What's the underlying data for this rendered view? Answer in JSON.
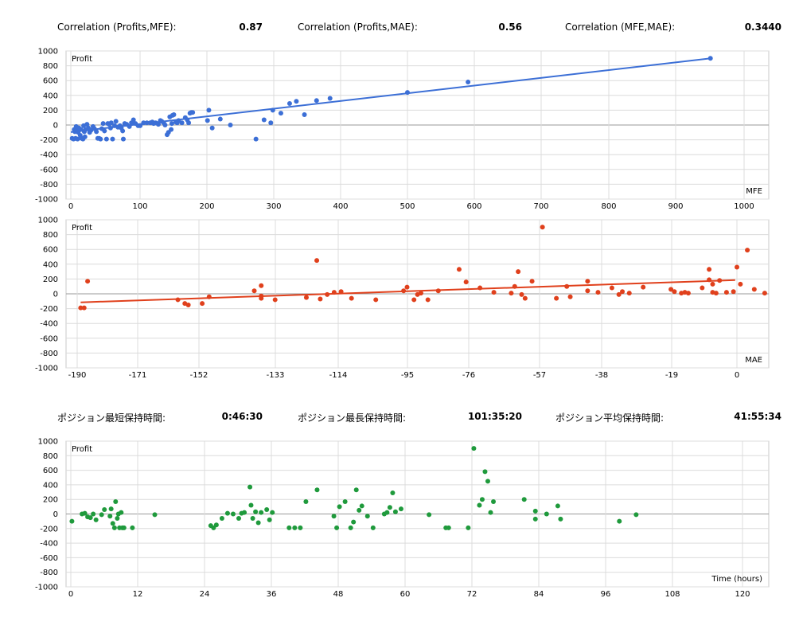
{
  "stats_row1": [
    {
      "label": "Correlation (Profits,MFE):",
      "value": "0.87"
    },
    {
      "label": "Correlation (Profits,MAE):",
      "value": "0.56"
    },
    {
      "label": "Correlation (MFE,MAE):",
      "value": "0.3440"
    }
  ],
  "stats_row2": [
    {
      "label": "ポジション最短保持時間:",
      "value": "0:46:30"
    },
    {
      "label": "ポジション最長保持時間:",
      "value": "101:35:20"
    },
    {
      "label": "ポジション平均保持時間:",
      "value": "41:55:34"
    }
  ],
  "chart_data": [
    {
      "type": "scatter",
      "title": "",
      "ylabel": "Profit",
      "xlabel": "MFE",
      "xlim": [
        0,
        1000
      ],
      "ylim": [
        -1000,
        1000
      ],
      "xticks": [
        "0",
        "100",
        "200",
        "300",
        "400",
        "500",
        "600",
        "700",
        "800",
        "900",
        "1000"
      ],
      "yticks": [
        "1000",
        "800",
        "600",
        "400",
        "200",
        "0",
        "-200",
        "-400",
        "-600",
        "-800",
        "-1000"
      ],
      "grid": true,
      "color": "#3c6fd6",
      "trendline": {
        "x": [
          0,
          950
        ],
        "y": [
          -95,
          900
        ]
      },
      "points": [
        [
          2,
          -180
        ],
        [
          4,
          -190
        ],
        [
          5,
          -60
        ],
        [
          6,
          -90
        ],
        [
          7,
          -180
        ],
        [
          8,
          -20
        ],
        [
          9,
          -70
        ],
        [
          10,
          -190
        ],
        [
          11,
          -100
        ],
        [
          12,
          -40
        ],
        [
          14,
          -140
        ],
        [
          15,
          -60
        ],
        [
          16,
          -180
        ],
        [
          18,
          -190
        ],
        [
          19,
          -10
        ],
        [
          20,
          -90
        ],
        [
          21,
          -160
        ],
        [
          22,
          -60
        ],
        [
          24,
          10
        ],
        [
          26,
          -40
        ],
        [
          28,
          -100
        ],
        [
          30,
          -70
        ],
        [
          33,
          -20
        ],
        [
          35,
          -50
        ],
        [
          38,
          -90
        ],
        [
          40,
          -180
        ],
        [
          42,
          -180
        ],
        [
          44,
          -190
        ],
        [
          46,
          -50
        ],
        [
          48,
          20
        ],
        [
          50,
          -80
        ],
        [
          53,
          -190
        ],
        [
          55,
          20
        ],
        [
          57,
          10
        ],
        [
          59,
          -40
        ],
        [
          60,
          30
        ],
        [
          62,
          -190
        ],
        [
          65,
          -10
        ],
        [
          67,
          50
        ],
        [
          70,
          -30
        ],
        [
          73,
          -10
        ],
        [
          75,
          -40
        ],
        [
          77,
          -80
        ],
        [
          78,
          -190
        ],
        [
          80,
          20
        ],
        [
          83,
          10
        ],
        [
          87,
          -20
        ],
        [
          90,
          30
        ],
        [
          93,
          70
        ],
        [
          96,
          20
        ],
        [
          100,
          -10
        ],
        [
          103,
          -10
        ],
        [
          108,
          30
        ],
        [
          113,
          30
        ],
        [
          118,
          30
        ],
        [
          121,
          40
        ],
        [
          123,
          20
        ],
        [
          126,
          30
        ],
        [
          130,
          10
        ],
        [
          133,
          60
        ],
        [
          135,
          50
        ],
        [
          138,
          30
        ],
        [
          140,
          0
        ],
        [
          143,
          -130
        ],
        [
          145,
          -100
        ],
        [
          147,
          110
        ],
        [
          149,
          -60
        ],
        [
          150,
          20
        ],
        [
          151,
          130
        ],
        [
          153,
          140
        ],
        [
          156,
          40
        ],
        [
          158,
          30
        ],
        [
          160,
          60
        ],
        [
          165,
          30
        ],
        [
          170,
          100
        ],
        [
          173,
          70
        ],
        [
          175,
          30
        ],
        [
          177,
          160
        ],
        [
          179,
          170
        ],
        [
          181,
          170
        ],
        [
          203,
          60
        ],
        [
          205,
          200
        ],
        [
          210,
          -40
        ],
        [
          222,
          80
        ],
        [
          237,
          0
        ],
        [
          275,
          -190
        ],
        [
          287,
          70
        ],
        [
          297,
          30
        ],
        [
          300,
          200
        ],
        [
          312,
          160
        ],
        [
          325,
          290
        ],
        [
          335,
          320
        ],
        [
          347,
          140
        ],
        [
          365,
          330
        ],
        [
          385,
          360
        ],
        [
          500,
          440
        ],
        [
          590,
          580
        ],
        [
          950,
          900
        ]
      ]
    },
    {
      "type": "scatter",
      "title": "",
      "ylabel": "Profit",
      "xlabel": "MAE",
      "xlim": [
        -190,
        0
      ],
      "ylim": [
        -1000,
        1000
      ],
      "xticks": [
        "-190",
        "-171",
        "-152",
        "-133",
        "-114",
        "-95",
        "-76",
        "-57",
        "-38",
        "-19",
        "0"
      ],
      "yticks": [
        "1000",
        "800",
        "600",
        "400",
        "200",
        "0",
        "-200",
        "-400",
        "-600",
        "-800",
        "-1000"
      ],
      "grid": true,
      "color": "#e0401c",
      "trendline": {
        "x": [
          -189,
          -0.5
        ],
        "y": [
          -115,
          185
        ]
      },
      "points": [
        [
          -189,
          -190
        ],
        [
          -188,
          -190
        ],
        [
          -187,
          170
        ],
        [
          -161,
          -80
        ],
        [
          -159,
          -130
        ],
        [
          -158,
          -150
        ],
        [
          -154,
          -130
        ],
        [
          -152,
          -40
        ],
        [
          -139,
          40
        ],
        [
          -137,
          110
        ],
        [
          -137,
          -30
        ],
        [
          -137,
          -60
        ],
        [
          -133,
          -80
        ],
        [
          -124,
          -50
        ],
        [
          -121,
          450
        ],
        [
          -120,
          -70
        ],
        [
          -118,
          -10
        ],
        [
          -116,
          20
        ],
        [
          -114,
          30
        ],
        [
          -111,
          -60
        ],
        [
          -104,
          -80
        ],
        [
          -96,
          40
        ],
        [
          -95,
          90
        ],
        [
          -93,
          -80
        ],
        [
          -92,
          -10
        ],
        [
          -91,
          10
        ],
        [
          -89,
          -80
        ],
        [
          -86,
          40
        ],
        [
          -80,
          330
        ],
        [
          -78,
          160
        ],
        [
          -74,
          80
        ],
        [
          -70,
          20
        ],
        [
          -65,
          10
        ],
        [
          -64,
          100
        ],
        [
          -63,
          300
        ],
        [
          -62,
          -10
        ],
        [
          -61,
          -60
        ],
        [
          -59,
          170
        ],
        [
          -56,
          900
        ],
        [
          -52,
          -60
        ],
        [
          -49,
          100
        ],
        [
          -48,
          -40
        ],
        [
          -43,
          170
        ],
        [
          -43,
          40
        ],
        [
          -40,
          20
        ],
        [
          -36,
          80
        ],
        [
          -34,
          -10
        ],
        [
          -33,
          30
        ],
        [
          -31,
          10
        ],
        [
          -27,
          90
        ],
        [
          -19,
          60
        ],
        [
          -18,
          30
        ],
        [
          -16,
          10
        ],
        [
          -15,
          20
        ],
        [
          -14,
          10
        ],
        [
          -10,
          80
        ],
        [
          -8,
          190
        ],
        [
          -8,
          330
        ],
        [
          -7,
          130
        ],
        [
          -7,
          20
        ],
        [
          -6,
          10
        ],
        [
          -5,
          180
        ],
        [
          -3,
          20
        ],
        [
          -1,
          30
        ],
        [
          0,
          360
        ],
        [
          1,
          130
        ],
        [
          3,
          590
        ],
        [
          5,
          60
        ],
        [
          8,
          10
        ]
      ]
    },
    {
      "type": "scatter",
      "title": "",
      "ylabel": "Profit",
      "xlabel": "Time (hours)",
      "xlim": [
        0,
        120
      ],
      "ylim": [
        -1000,
        1000
      ],
      "xticks": [
        "0",
        "12",
        "24",
        "36",
        "48",
        "60",
        "72",
        "84",
        "96",
        "108",
        "120"
      ],
      "yticks": [
        "1000",
        "800",
        "600",
        "400",
        "200",
        "0",
        "-200",
        "-400",
        "-600",
        "-800",
        "-1000"
      ],
      "grid": true,
      "color": "#1f9a3c",
      "points": [
        [
          0.2,
          -100
        ],
        [
          2,
          0
        ],
        [
          2.5,
          10
        ],
        [
          3,
          -40
        ],
        [
          3.5,
          -50
        ],
        [
          4,
          0
        ],
        [
          4.5,
          -80
        ],
        [
          5.5,
          -10
        ],
        [
          6,
          60
        ],
        [
          7,
          -30
        ],
        [
          7.2,
          70
        ],
        [
          7.5,
          -130
        ],
        [
          7.8,
          -190
        ],
        [
          8,
          170
        ],
        [
          8.3,
          -60
        ],
        [
          8.5,
          0
        ],
        [
          8.7,
          -190
        ],
        [
          9,
          20
        ],
        [
          9.2,
          -190
        ],
        [
          9.5,
          -190
        ],
        [
          11,
          -190
        ],
        [
          15,
          -10
        ],
        [
          25,
          -160
        ],
        [
          25.5,
          -190
        ],
        [
          26,
          -150
        ],
        [
          27,
          -60
        ],
        [
          28,
          10
        ],
        [
          29,
          0
        ],
        [
          30,
          -60
        ],
        [
          30.5,
          10
        ],
        [
          31,
          20
        ],
        [
          32,
          370
        ],
        [
          32.2,
          120
        ],
        [
          32.5,
          -60
        ],
        [
          33,
          30
        ],
        [
          33.5,
          -120
        ],
        [
          34,
          20
        ],
        [
          35,
          60
        ],
        [
          35.5,
          -80
        ],
        [
          36,
          20
        ],
        [
          39,
          -190
        ],
        [
          40,
          -190
        ],
        [
          41,
          -190
        ],
        [
          42,
          170
        ],
        [
          44,
          330
        ],
        [
          47,
          -30
        ],
        [
          47.5,
          -190
        ],
        [
          48,
          100
        ],
        [
          49,
          170
        ],
        [
          50,
          -190
        ],
        [
          50.5,
          -110
        ],
        [
          51,
          330
        ],
        [
          51.5,
          50
        ],
        [
          52,
          110
        ],
        [
          53,
          -30
        ],
        [
          54,
          -190
        ],
        [
          56,
          0
        ],
        [
          56.5,
          20
        ],
        [
          57,
          90
        ],
        [
          57.5,
          290
        ],
        [
          58,
          30
        ],
        [
          59,
          70
        ],
        [
          64,
          -10
        ],
        [
          67,
          -190
        ],
        [
          67.5,
          -190
        ],
        [
          71,
          -190
        ],
        [
          72,
          900
        ],
        [
          73,
          120
        ],
        [
          73.5,
          200
        ],
        [
          74,
          580
        ],
        [
          74.5,
          450
        ],
        [
          75,
          20
        ],
        [
          75.5,
          170
        ],
        [
          81,
          200
        ],
        [
          83,
          -70
        ],
        [
          83,
          40
        ],
        [
          85,
          0
        ],
        [
          87,
          110
        ],
        [
          87.5,
          -70
        ],
        [
          98,
          -100
        ],
        [
          101,
          -10
        ]
      ]
    }
  ]
}
